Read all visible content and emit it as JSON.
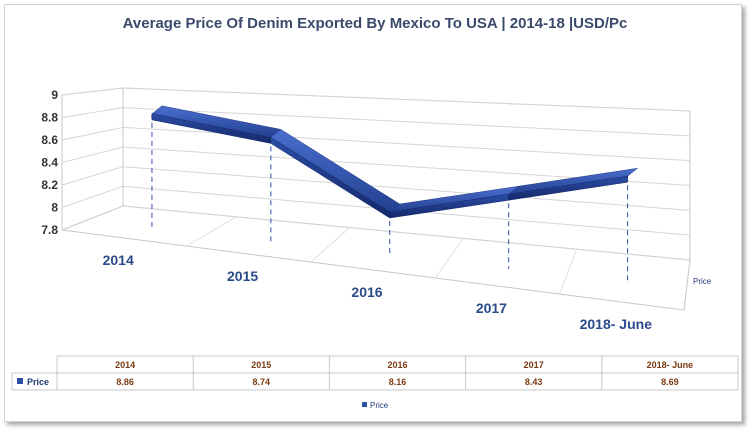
{
  "chart_data": {
    "type": "line",
    "title": "Average Price Of Denim Exported By Mexico To USA | 2014-18 |USD/Pc",
    "categories": [
      "2014",
      "2015",
      "2016",
      "2017",
      "2018- June"
    ],
    "series": [
      {
        "name": "Price",
        "values": [
          8.86,
          8.74,
          8.16,
          8.43,
          8.69
        ],
        "color": "#2e4fa8"
      }
    ],
    "y_ticks": [
      "7.8",
      "8",
      "8.2",
      "8.4",
      "8.6",
      "8.8",
      "9"
    ],
    "ylim": [
      7.8,
      9
    ],
    "depth_axis_label": "Price",
    "data_table": {
      "headers": [
        "2014",
        "2015",
        "2016",
        "2017",
        "2018- June"
      ],
      "row_label": "Price",
      "values": [
        "8.86",
        "8.74",
        "8.16",
        "8.43",
        "8.69"
      ]
    },
    "legend": {
      "label": "Price",
      "placement": "bottom"
    },
    "grid": true,
    "style": "3d-ribbon"
  }
}
